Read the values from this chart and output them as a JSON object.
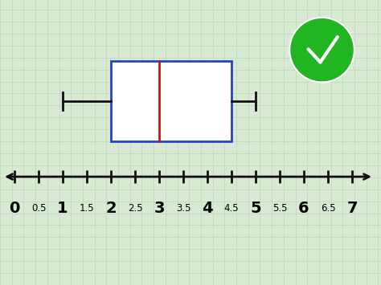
{
  "bg_color": "#d8ead4",
  "grid_color": "#bdd6b5",
  "box_color": "#2244cc",
  "median_color": "#cc1111",
  "whisker_color": "#111111",
  "line_color": "#111111",
  "q1": 2.0,
  "q3": 4.5,
  "median": 3.0,
  "whisker_low": 1.0,
  "whisker_high": 5.0,
  "tick_labels": [
    "0",
    "0.5",
    "1",
    "1.5",
    "2",
    "2.5",
    "3",
    "3.5",
    "4",
    "4.5",
    "5",
    "5.5",
    "6",
    "6.5",
    "7"
  ],
  "tick_positions": [
    0,
    0.5,
    1,
    1.5,
    2,
    2.5,
    3,
    3.5,
    4,
    4.5,
    5,
    5.5,
    6,
    6.5,
    7
  ],
  "checkmark_color": "#22b522",
  "whole_fontsize": 14,
  "half_fontsize": 8.5
}
